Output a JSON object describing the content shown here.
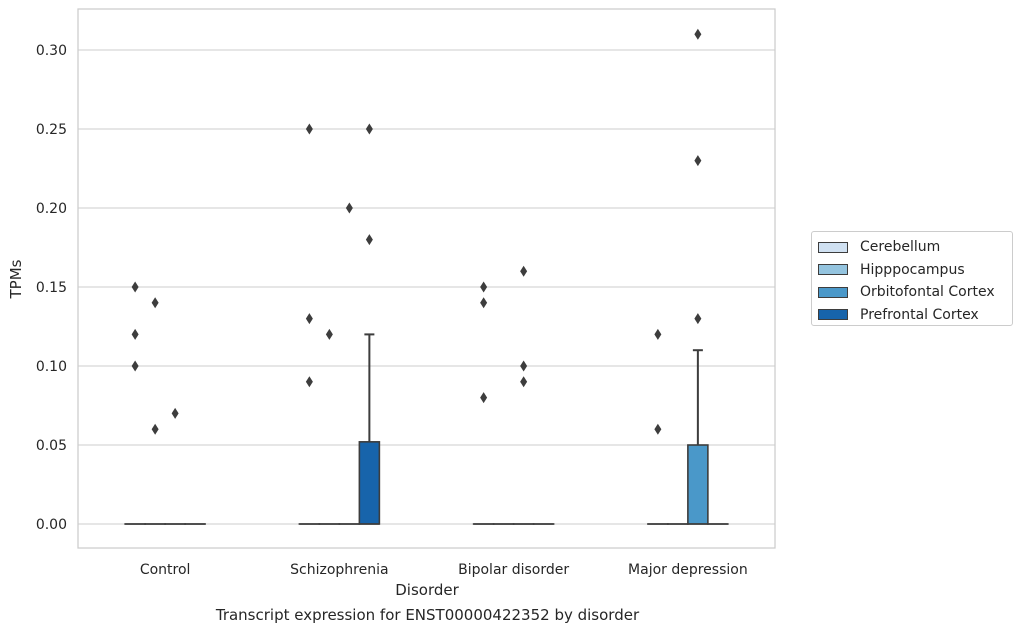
{
  "chart_data": {
    "type": "box",
    "xlabel": "Disorder",
    "ylabel": "TPMs",
    "caption": "Transcript expression for ENST00000422352 by disorder",
    "ylim": [
      -0.015,
      0.326
    ],
    "yticks": [
      "0.00",
      "0.05",
      "0.10",
      "0.15",
      "0.20",
      "0.25",
      "0.30"
    ],
    "grid": "horizontal",
    "legend_position": "right",
    "categories": [
      "Control",
      "Schizophrenia",
      "Bipolar disorder",
      "Major depression"
    ],
    "series": [
      {
        "name": "Cerebellum",
        "color": "#d0e1f2"
      },
      {
        "name": "Hipppocampus",
        "color": "#94c4df"
      },
      {
        "name": "Orbitofontal Cortex",
        "color": "#4a98c9"
      },
      {
        "name": "Prefrontal Cortex",
        "color": "#1764ab"
      }
    ],
    "boxes": [
      {
        "category": "Control",
        "series": "Cerebellum",
        "q1": 0,
        "median": 0,
        "q3": 0,
        "whisker_low": 0,
        "whisker_high": 0,
        "outliers": [
          0.15,
          0.12,
          0.1
        ]
      },
      {
        "category": "Control",
        "series": "Hipppocampus",
        "q1": 0,
        "median": 0,
        "q3": 0,
        "whisker_low": 0,
        "whisker_high": 0,
        "outliers": [
          0.14,
          0.06
        ]
      },
      {
        "category": "Control",
        "series": "Orbitofontal Cortex",
        "q1": 0,
        "median": 0,
        "q3": 0,
        "whisker_low": 0,
        "whisker_high": 0,
        "outliers": [
          0.07
        ]
      },
      {
        "category": "Control",
        "series": "Prefrontal Cortex",
        "q1": 0,
        "median": 0,
        "q3": 0,
        "whisker_low": 0,
        "whisker_high": 0,
        "outliers": []
      },
      {
        "category": "Schizophrenia",
        "series": "Cerebellum",
        "q1": 0,
        "median": 0,
        "q3": 0,
        "whisker_low": 0,
        "whisker_high": 0,
        "outliers": [
          0.25,
          0.13,
          0.09
        ]
      },
      {
        "category": "Schizophrenia",
        "series": "Hipppocampus",
        "q1": 0,
        "median": 0,
        "q3": 0,
        "whisker_low": 0,
        "whisker_high": 0,
        "outliers": [
          0.12
        ]
      },
      {
        "category": "Schizophrenia",
        "series": "Orbitofontal Cortex",
        "q1": 0,
        "median": 0,
        "q3": 0,
        "whisker_low": 0,
        "whisker_high": 0,
        "outliers": [
          0.2
        ]
      },
      {
        "category": "Schizophrenia",
        "series": "Prefrontal Cortex",
        "q1": 0,
        "median": 0,
        "q3": 0.052,
        "whisker_low": 0,
        "whisker_high": 0.12,
        "outliers": [
          0.25,
          0.18
        ]
      },
      {
        "category": "Bipolar disorder",
        "series": "Cerebellum",
        "q1": 0,
        "median": 0,
        "q3": 0,
        "whisker_low": 0,
        "whisker_high": 0,
        "outliers": [
          0.15,
          0.14,
          0.08
        ]
      },
      {
        "category": "Bipolar disorder",
        "series": "Hipppocampus",
        "q1": 0,
        "median": 0,
        "q3": 0,
        "whisker_low": 0,
        "whisker_high": 0,
        "outliers": []
      },
      {
        "category": "Bipolar disorder",
        "series": "Orbitofontal Cortex",
        "q1": 0,
        "median": 0,
        "q3": 0,
        "whisker_low": 0,
        "whisker_high": 0,
        "outliers": [
          0.16,
          0.1,
          0.09
        ]
      },
      {
        "category": "Bipolar disorder",
        "series": "Prefrontal Cortex",
        "q1": 0,
        "median": 0,
        "q3": 0,
        "whisker_low": 0,
        "whisker_high": 0,
        "outliers": []
      },
      {
        "category": "Major depression",
        "series": "Cerebellum",
        "q1": 0,
        "median": 0,
        "q3": 0,
        "whisker_low": 0,
        "whisker_high": 0,
        "outliers": [
          0.12,
          0.06
        ]
      },
      {
        "category": "Major depression",
        "series": "Hipppocampus",
        "q1": 0,
        "median": 0,
        "q3": 0,
        "whisker_low": 0,
        "whisker_high": 0,
        "outliers": []
      },
      {
        "category": "Major depression",
        "series": "Orbitofontal Cortex",
        "q1": 0,
        "median": 0,
        "q3": 0.05,
        "whisker_low": 0,
        "whisker_high": 0.11,
        "outliers": [
          0.31,
          0.23,
          0.13
        ]
      },
      {
        "category": "Major depression",
        "series": "Prefrontal Cortex",
        "q1": 0,
        "median": 0,
        "q3": 0,
        "whisker_low": 0,
        "whisker_high": 0,
        "outliers": []
      }
    ]
  }
}
